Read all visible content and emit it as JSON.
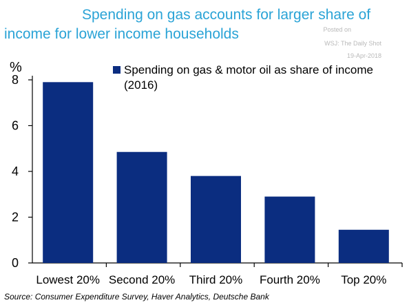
{
  "title": {
    "line1": "Spending on gas accounts for larger share of",
    "line2": "income for lower income households"
  },
  "watermark": {
    "line1": "Posted on",
    "line2": "WSJ: The Daily Shot",
    "line3": "19-Apr-2018"
  },
  "source": "Source: Consumer Expenditure Survey, Haver Analytics, Deutsche Bank",
  "colors": {
    "bar": "#0b2d80",
    "title": "#2aa3d6",
    "axis": "#000000"
  },
  "chart_data": {
    "type": "bar",
    "categories": [
      "Lowest 20%",
      "Second 20%",
      "Third 20%",
      "Fourth 20%",
      "Top 20%"
    ],
    "series": [
      {
        "name": "Spending on gas & motor oil as share of income (2016)",
        "name_lines": [
          "Spending on gas & motor oil as share of income",
          "(2016)"
        ],
        "values": [
          7.9,
          4.85,
          3.8,
          2.9,
          1.45
        ]
      }
    ],
    "ylabel": "%",
    "ylim": [
      0,
      8
    ],
    "yticks": [
      0,
      2,
      4,
      6,
      8
    ],
    "grid": false,
    "legend_position": "top-right"
  }
}
